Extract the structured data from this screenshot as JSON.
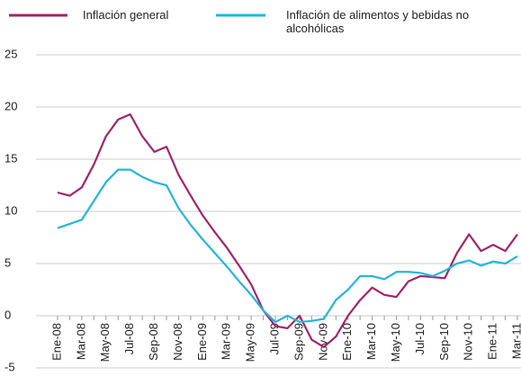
{
  "chart_data": {
    "type": "line",
    "categories": [
      "Ene-08",
      null,
      "Mar-08",
      null,
      "May-08",
      null,
      "Jul-08",
      null,
      "Sep-08",
      null,
      "Nov-08",
      null,
      "Ene-09",
      null,
      "Mar-09",
      null,
      "May-09",
      null,
      "Jul-09",
      null,
      "Sep-09",
      null,
      "Nov-09",
      null,
      "Ene-10",
      null,
      "Mar-10",
      null,
      "May-10",
      null,
      "Jul-10",
      null,
      "Sep-10",
      null,
      "Nov-10",
      null,
      "Ene-11",
      null,
      "Mar-11"
    ],
    "series": [
      {
        "name": "Inflación general",
        "color": "#a3246a",
        "values": [
          11.8,
          11.5,
          12.3,
          14.5,
          17.2,
          18.8,
          19.3,
          17.2,
          15.7,
          16.2,
          13.5,
          11.5,
          9.6,
          8.0,
          6.5,
          4.8,
          3.0,
          0.5,
          -1.0,
          -1.2,
          0.0,
          -2.3,
          -3.0,
          -2.0,
          0.0,
          1.5,
          2.7,
          2.0,
          1.8,
          3.3,
          3.8,
          3.7,
          3.6,
          6.0,
          7.8,
          6.2,
          6.8,
          6.2,
          7.8
        ]
      },
      {
        "name": "Inflación de alimentos y bebidas no alcohólicas",
        "color": "#25b5dc",
        "values": [
          8.4,
          8.8,
          9.2,
          11.0,
          12.8,
          14.0,
          14.0,
          13.3,
          12.8,
          12.5,
          10.3,
          8.7,
          7.3,
          6.0,
          4.7,
          3.3,
          2.0,
          0.5,
          -0.6,
          0.0,
          -0.6,
          -0.5,
          -0.3,
          1.5,
          2.5,
          3.8,
          3.8,
          3.5,
          4.2,
          4.2,
          4.1,
          3.8,
          4.3,
          5.0,
          5.3,
          4.8,
          5.2,
          5.0,
          5.7
        ]
      }
    ],
    "ylim": [
      -5,
      25
    ],
    "yticks": [
      -5,
      0,
      5,
      10,
      15,
      20,
      25
    ],
    "grid": true
  }
}
